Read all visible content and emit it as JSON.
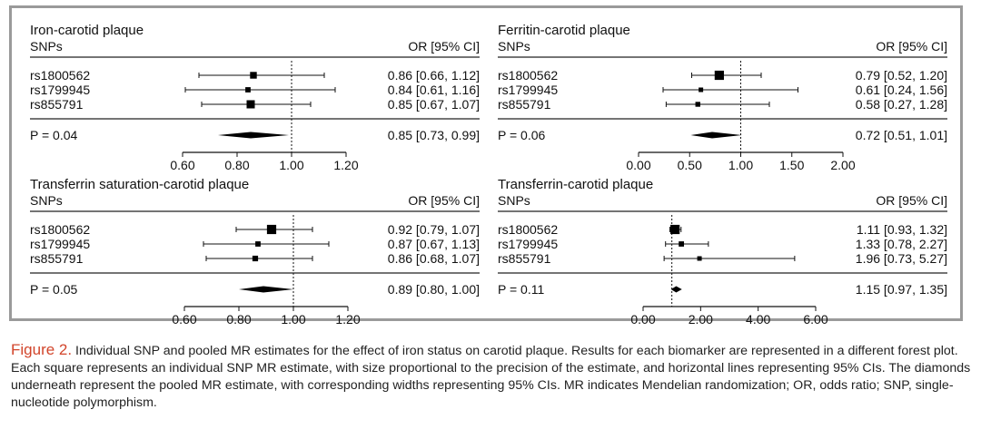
{
  "chart_data": [
    {
      "type": "forest",
      "title": "Iron-carotid plaque",
      "col_left": "SNPs",
      "col_right": "OR [95% CI]",
      "rows": [
        {
          "snp": "rs1800562",
          "or": 0.86,
          "lo": 0.66,
          "hi": 1.12,
          "label": "0.86 [0.66, 1.12]",
          "weight": 0.55
        },
        {
          "snp": "rs1799945",
          "or": 0.84,
          "lo": 0.61,
          "hi": 1.16,
          "label": "0.84 [0.61, 1.16]",
          "weight": 0.35
        },
        {
          "snp": "rs855791",
          "or": 0.85,
          "lo": 0.67,
          "hi": 1.07,
          "label": "0.85 [0.67, 1.07]",
          "weight": 0.75
        }
      ],
      "pooled": {
        "p": "P = 0.04",
        "or": 0.85,
        "lo": 0.73,
        "hi": 0.99,
        "label": "0.85 [0.73, 0.99]"
      },
      "xlim": [
        0.6,
        1.2
      ],
      "ticks": [
        0.6,
        0.8,
        1.0,
        1.2
      ],
      "tick_labels": [
        "0.60",
        "0.80",
        "1.00",
        "1.20"
      ],
      "ref": 1.0
    },
    {
      "type": "forest",
      "title": "Ferritin-carotid plaque",
      "col_left": "SNPs",
      "col_right": "OR [95% CI]",
      "rows": [
        {
          "snp": "rs1800562",
          "or": 0.79,
          "lo": 0.52,
          "hi": 1.2,
          "label": "0.79 [0.52, 1.20]",
          "weight": 0.9
        },
        {
          "snp": "rs1799945",
          "or": 0.61,
          "lo": 0.24,
          "hi": 1.56,
          "label": "0.61 [0.24, 1.56]",
          "weight": 0.25
        },
        {
          "snp": "rs855791",
          "or": 0.58,
          "lo": 0.27,
          "hi": 1.28,
          "label": "0.58 [0.27, 1.28]",
          "weight": 0.3
        }
      ],
      "pooled": {
        "p": "P = 0.06",
        "or": 0.72,
        "lo": 0.51,
        "hi": 1.01,
        "label": "0.72 [0.51, 1.01]"
      },
      "xlim": [
        0.0,
        2.0
      ],
      "ticks": [
        0.0,
        0.5,
        1.0,
        1.5,
        2.0
      ],
      "tick_labels": [
        "0.00",
        "0.50",
        "1.00",
        "1.50",
        "2.00"
      ],
      "ref": 1.0
    },
    {
      "type": "forest",
      "title": "Transferrin saturation-carotid plaque",
      "col_left": "SNPs",
      "col_right": "OR [95% CI]",
      "rows": [
        {
          "snp": "rs1800562",
          "or": 0.92,
          "lo": 0.79,
          "hi": 1.07,
          "label": "0.92 [0.79, 1.07]",
          "weight": 0.9
        },
        {
          "snp": "rs1799945",
          "or": 0.87,
          "lo": 0.67,
          "hi": 1.13,
          "label": "0.87 [0.67, 1.13]",
          "weight": 0.35
        },
        {
          "snp": "rs855791",
          "or": 0.86,
          "lo": 0.68,
          "hi": 1.07,
          "label": "0.86 [0.68, 1.07]",
          "weight": 0.4
        }
      ],
      "pooled": {
        "p": "P = 0.05",
        "or": 0.89,
        "lo": 0.8,
        "hi": 1.0,
        "label": "0.89 [0.80, 1.00]"
      },
      "xlim": [
        0.6,
        1.2
      ],
      "ticks": [
        0.6,
        0.8,
        1.0,
        1.2
      ],
      "tick_labels": [
        "0.60",
        "0.80",
        "1.00",
        "1.20"
      ],
      "ref": 1.0
    },
    {
      "type": "forest",
      "title": "Transferrin-carotid plaque",
      "col_left": "SNPs",
      "col_right": "OR [95% CI]",
      "rows": [
        {
          "snp": "rs1800562",
          "or": 1.11,
          "lo": 0.93,
          "hi": 1.32,
          "label": "1.11 [0.93, 1.32]",
          "weight": 0.9
        },
        {
          "snp": "rs1799945",
          "or": 1.33,
          "lo": 0.78,
          "hi": 2.27,
          "label": "1.33 [0.78, 2.27]",
          "weight": 0.35
        },
        {
          "snp": "rs855791",
          "or": 1.96,
          "lo": 0.73,
          "hi": 5.27,
          "label": "1.96 [0.73, 5.27]",
          "weight": 0.25
        }
      ],
      "pooled": {
        "p": "P = 0.11",
        "or": 1.15,
        "lo": 0.97,
        "hi": 1.35,
        "label": "1.15 [0.97, 1.35]"
      },
      "xlim": [
        0.0,
        6.0
      ],
      "ticks": [
        0,
        2,
        4,
        6
      ],
      "tick_labels": [
        "0.00",
        "2.00",
        "4.00",
        "6.00"
      ],
      "ref": 1.0
    }
  ],
  "caption": {
    "label": "Figure 2.",
    "text": "Individual SNP and pooled MR estimates for the effect of iron status on carotid plaque. Results for each biomarker are represented in a different forest plot. Each square represents an individual SNP MR estimate, with size proportional to the precision of the estimate, and horizontal lines representing 95% CIs. The diamonds underneath represent the pooled MR estimate, with corresponding widths representing 95% CIs. MR indicates Mendelian randomization; OR, odds ratio; SNP, single-nucleotide polymorphism."
  },
  "colors": {
    "frame": "#9a9a9a",
    "caption_label": "#d2452b",
    "ink": "#111111"
  }
}
